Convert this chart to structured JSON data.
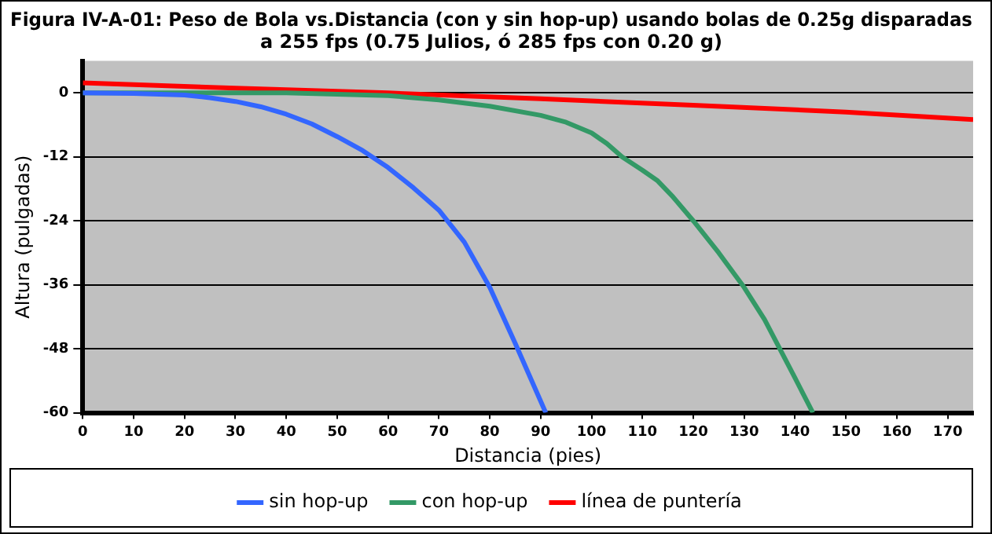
{
  "chart_data": {
    "type": "line",
    "title": "Figura IV-A-01: Peso de Bola vs.Distancia (con y sin hop-up) usando bolas de 0.25g disparadas a 255 fps (0.75 Julios, ó 285 fps con 0.20 g)",
    "xlabel": "Distancia (pies)",
    "ylabel": "Altura (pulgadas)",
    "xlim": [
      0,
      175
    ],
    "ylim": [
      -60,
      6
    ],
    "xticks": [
      0,
      10,
      20,
      30,
      40,
      50,
      60,
      70,
      80,
      90,
      100,
      110,
      120,
      130,
      140,
      150,
      160,
      170
    ],
    "yticks": [
      -60,
      -48,
      -36,
      -24,
      -12,
      0
    ],
    "grid": "y",
    "legend": "bottom",
    "marker": "none",
    "line_style": "solid",
    "series": [
      {
        "name": "sin hop-up",
        "color": "#3366ff",
        "x": [
          0,
          10,
          20,
          25,
          30,
          35,
          40,
          45,
          50,
          55,
          60,
          65,
          70,
          75,
          80,
          85,
          91
        ],
        "values": [
          0,
          -0.1,
          -0.4,
          -0.9,
          -1.6,
          -2.6,
          -4,
          -5.8,
          -8.2,
          -10.8,
          -14,
          -17.8,
          -22,
          -28,
          -36.5,
          -47,
          -60
        ]
      },
      {
        "name": "con hop-up",
        "color": "#339966",
        "x": [
          0,
          20,
          40,
          60,
          70,
          80,
          90,
          95,
          100,
          103,
          106,
          110,
          113,
          116,
          120,
          125,
          130,
          134,
          137,
          140,
          143.5
        ],
        "values": [
          0,
          0,
          0,
          -0.5,
          -1.3,
          -2.5,
          -4.2,
          -5.5,
          -7.5,
          -9.5,
          -12,
          -14.5,
          -16.5,
          -19.5,
          -24,
          -30,
          -36.5,
          -42.5,
          -48,
          -53.5,
          -60
        ]
      },
      {
        "name": "línea de puntería",
        "color": "#ff0000",
        "x": [
          0,
          30,
          60,
          90,
          120,
          150,
          175
        ],
        "values": [
          1.9,
          0.9,
          0,
          -1.1,
          -2.3,
          -3.6,
          -5
        ]
      }
    ]
  }
}
